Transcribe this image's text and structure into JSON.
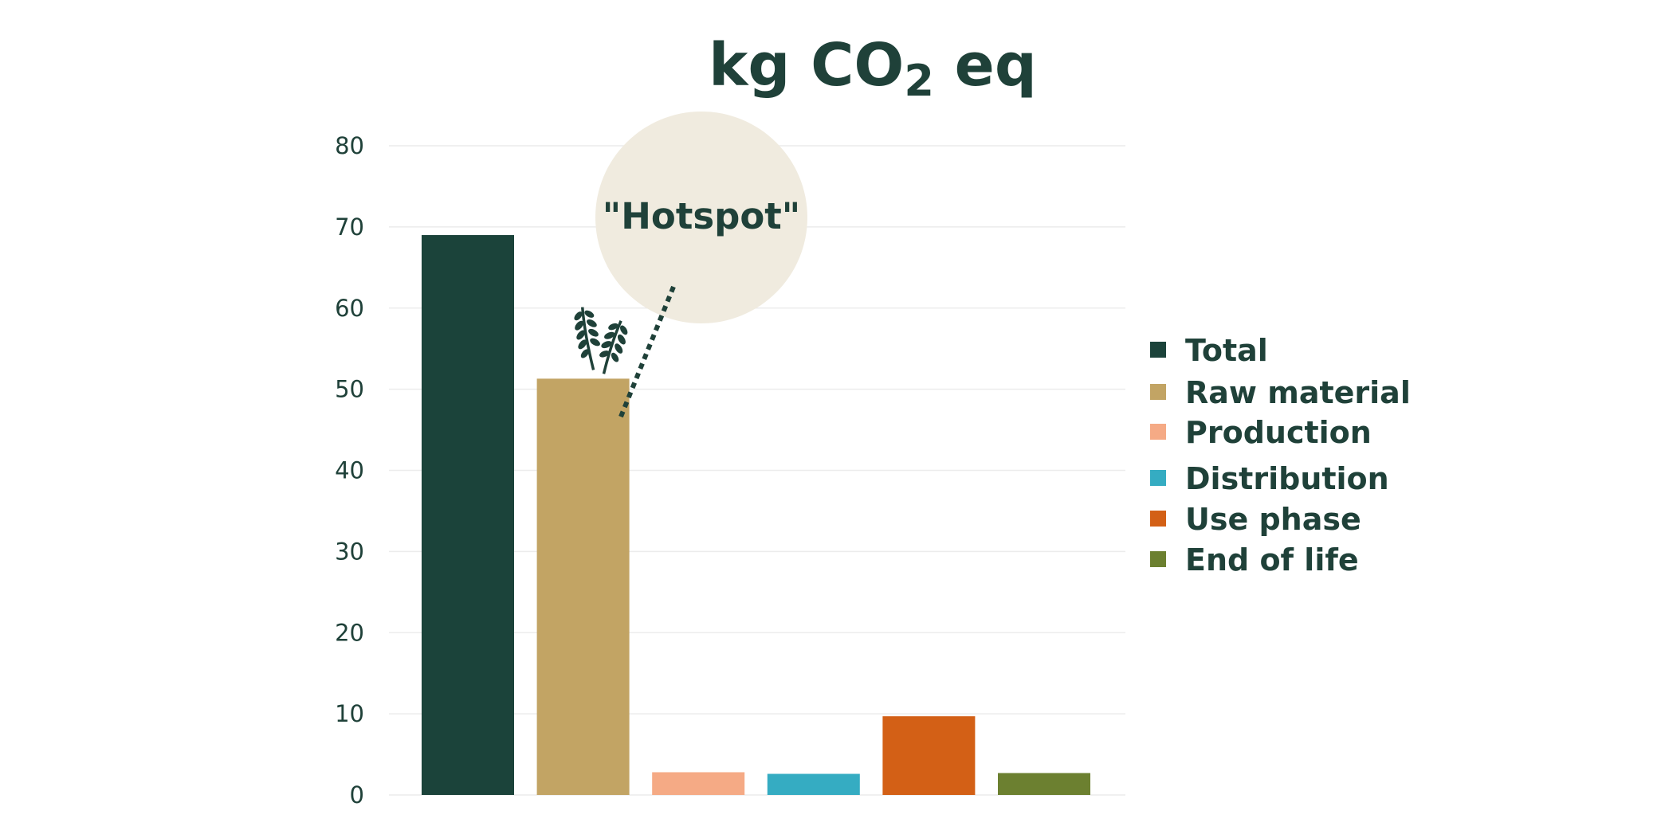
{
  "chart_data": {
    "type": "bar",
    "title": "kg CO2 eq",
    "title_parts": {
      "main": "kg CO",
      "subscript": "2",
      "suffix": " eq"
    },
    "xlabel": "",
    "ylabel": "",
    "ylim": [
      0,
      80
    ],
    "yticks": [
      0,
      10,
      20,
      30,
      40,
      50,
      60,
      70,
      80
    ],
    "grid": true,
    "legend_position": "right",
    "categories": [
      "Total",
      "Raw material",
      "Production",
      "Distribution",
      "Use phase",
      "End of life"
    ],
    "values": [
      69,
      51.3,
      2.8,
      2.6,
      9.7,
      2.7
    ],
    "colors": [
      "#1b433a",
      "#c2a464",
      "#f5aa85",
      "#35acc2",
      "#d36016",
      "#6c8030"
    ],
    "annotation": {
      "text": "\"Hotspot\"",
      "target_category": "Raw material",
      "icon": "wheat-icon",
      "bubble_color": "#f0ebdf"
    },
    "text_color": "#1f4139",
    "grid_color": "#ececec"
  }
}
